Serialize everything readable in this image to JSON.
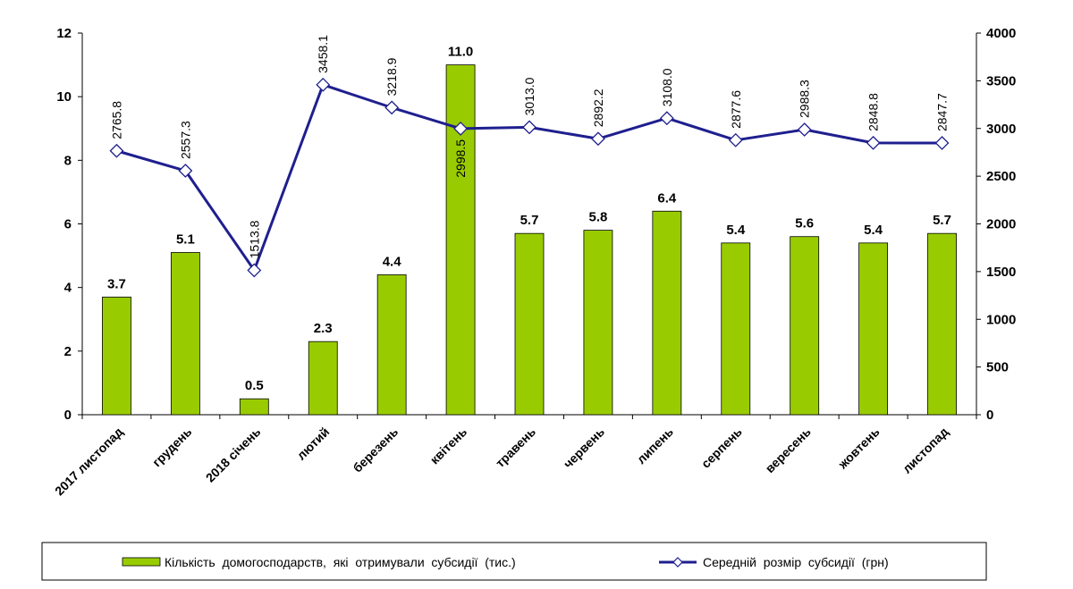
{
  "chart_data": {
    "type": "bar",
    "categories": [
      "2017 листопад",
      "грудень",
      "2018 січень",
      "лютий",
      "березень",
      "квітень",
      "травень",
      "червень",
      "липень",
      "серпень",
      "вересень",
      "жовтень",
      "листопад"
    ],
    "series": [
      {
        "name": "Кількість  домогосподарств,  які  отримували  субсидії  (тис.)",
        "type": "bar",
        "axis": "left",
        "color": "#99cc00",
        "values": [
          3.7,
          5.1,
          0.5,
          2.3,
          4.4,
          11.0,
          5.7,
          5.8,
          6.4,
          5.4,
          5.6,
          5.4,
          5.7
        ],
        "labels": [
          "3.7",
          "5.1",
          "0.5",
          "2.3",
          "4.4",
          "11.0",
          "5.7",
          "5.8",
          "6.4",
          "5.4",
          "5.6",
          "5.4",
          "5.7"
        ]
      },
      {
        "name": "Середній  розмір  субсидії  (грн)",
        "type": "line",
        "axis": "right",
        "color": "#1f1f8f",
        "values": [
          2765.8,
          2557.3,
          1513.8,
          3458.1,
          3218.9,
          2998.5,
          3013.0,
          2892.2,
          3108.0,
          2877.6,
          2988.3,
          2848.8,
          2847.7
        ],
        "labels": [
          "2765.8",
          "2557.3",
          "1513.8",
          "3458.1",
          "3218.9",
          "2998.5",
          "3013.0",
          "2892.2",
          "3108.0",
          "2877.6",
          "2988.3",
          "2848.8",
          "2847.7"
        ]
      }
    ],
    "y_left": {
      "min": 0,
      "max": 12,
      "ticks": [
        "0",
        "2",
        "4",
        "6",
        "8",
        "10",
        "12"
      ]
    },
    "y_right": {
      "min": 0,
      "max": 4000,
      "ticks": [
        "0",
        "500",
        "1000",
        "1500",
        "2000",
        "2500",
        "3000",
        "3500",
        "4000"
      ]
    },
    "grid": false,
    "legend": "bottom"
  }
}
